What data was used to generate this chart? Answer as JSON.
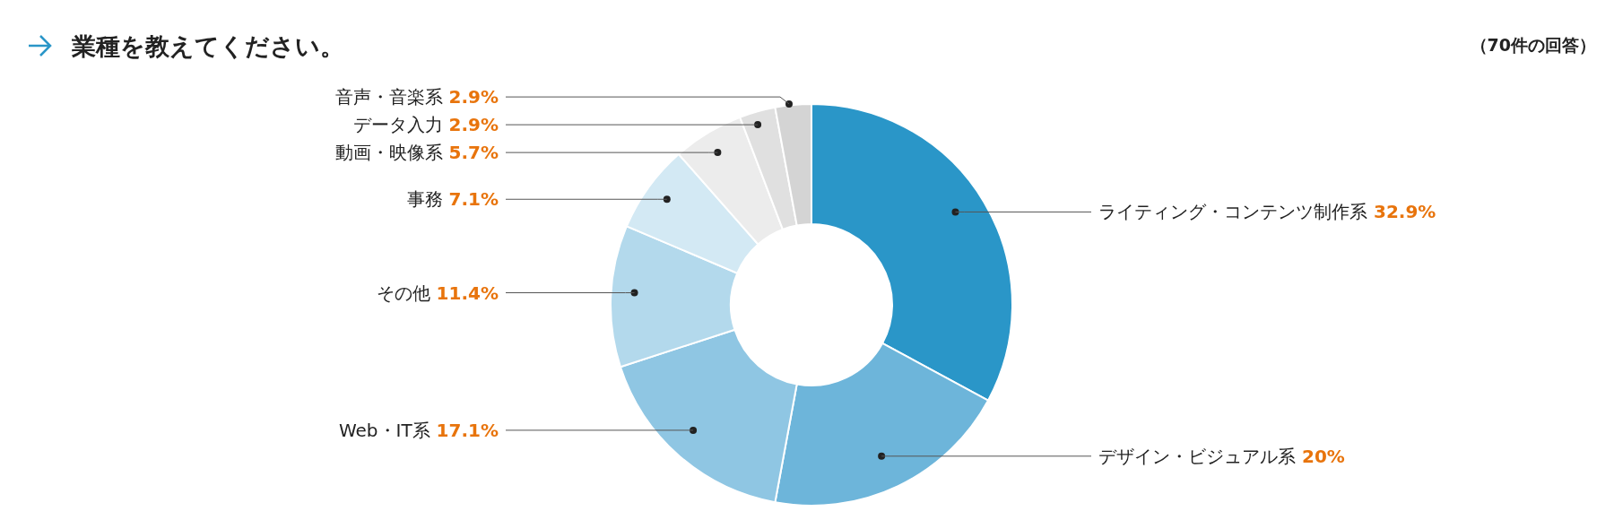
{
  "chart_data": {
    "type": "donut",
    "title": "業種を教えてください。",
    "annotations": [
      "（70件の回答）"
    ],
    "categories": [
      "ライティング・コンテンツ制作系",
      "デザイン・ビジュアル系",
      "Web・IT系",
      "その他",
      "事務",
      "動画・映像系",
      "データ入力",
      "音声・音楽系"
    ],
    "values": [
      32.9,
      20,
      17.1,
      11.4,
      7.1,
      5.7,
      2.9,
      2.9
    ],
    "value_labels": [
      "32.9%",
      "20%",
      "17.1%",
      "11.4%",
      "7.1%",
      "5.7%",
      "2.9%",
      "2.9%"
    ],
    "colors": [
      "#2a96c8",
      "#6db5da",
      "#8fc6e3",
      "#b3d9ec",
      "#d3e9f4",
      "#ececec",
      "#e0e0e0",
      "#d4d4d4"
    ]
  }
}
